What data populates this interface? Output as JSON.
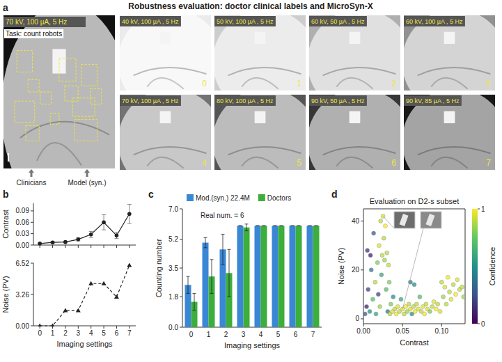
{
  "title": "Robustness evaluation: doctor clinical labels and MicroSyn-X",
  "panel_letters": [
    "a",
    "b",
    "c",
    "d"
  ],
  "panel_a": {
    "task": "Task: count robots",
    "main_setting": "70 kV, 100 µA, 5 Hz",
    "arrows": [
      "Clinicians",
      "Model (syn.)"
    ],
    "images": [
      {
        "setting": "40 kV, 100 µA , 5 Hz",
        "index": "0"
      },
      {
        "setting": "50 kV, 100 µA , 5 Hz",
        "index": "1"
      },
      {
        "setting": "60 kV, 50 µA , 5 Hz",
        "index": "2"
      },
      {
        "setting": "60 kV, 100 µA , 5 Hz",
        "index": "3"
      },
      {
        "setting": "70 kV, 100 µA , 5 Hz",
        "index": "4"
      },
      {
        "setting": "80 kV, 100 µA , 5 Hz",
        "index": "5"
      },
      {
        "setting": "90 kV, 50 µA , 5 Hz",
        "index": "6"
      },
      {
        "setting": "90 kV, 85 µA , 5 Hz",
        "index": "7"
      }
    ]
  },
  "chart_data": [
    {
      "type": "line",
      "ylabel": "Contrast",
      "x": [
        0,
        1,
        2,
        3,
        4,
        5,
        6,
        7
      ],
      "xlim": [
        -0.5,
        7.5
      ],
      "xticks": [
        0,
        1,
        2,
        3,
        4,
        5,
        6,
        7
      ],
      "ylim": [
        0,
        0.11
      ],
      "yticks": [
        {
          "value": 0,
          "label": "0.00"
        },
        0.03,
        0.06,
        0.09
      ],
      "tick_labels": "y",
      "grid": false,
      "series": [
        {
          "color": "#222222",
          "marker": "circle",
          "line_style": "solid",
          "values": [
            0.004,
            0.007,
            0.008,
            0.015,
            0.028,
            0.06,
            0.025,
            0.082
          ],
          "errors": [
            0.001,
            0.002,
            0.002,
            0.004,
            0.008,
            0.02,
            0.008,
            0.025
          ]
        }
      ]
    },
    {
      "type": "line",
      "ylabel": "Noise (PV)",
      "xlabel": "Imaging settings",
      "x": [
        0,
        1,
        2,
        3,
        4,
        5,
        6,
        7
      ],
      "xlim": [
        -0.5,
        7.5
      ],
      "xticks": [
        0,
        1,
        2,
        3,
        4,
        5,
        6,
        7
      ],
      "ylim": [
        0,
        6.52
      ],
      "yticks": [
        {
          "value": 0,
          "label": "0.00"
        },
        3.26,
        6.52
      ],
      "grid": false,
      "series": [
        {
          "color": "#222222",
          "marker": "triangle",
          "line_style": "dashed",
          "values": [
            0,
            0,
            1.6,
            1.6,
            4.4,
            4.4,
            3.0,
            6.3
          ]
        }
      ]
    },
    {
      "type": "bar",
      "ylabel": "Counting number",
      "xlabel": "Imaging settings",
      "categories": [
        "0",
        "1",
        "2",
        "3",
        "4",
        "5",
        "6",
        "7"
      ],
      "ylim": [
        0,
        7
      ],
      "yticks": [
        {
          "value": 0,
          "label": "0.0"
        },
        1.8,
        3.5,
        5.2,
        {
          "value": 7,
          "label": "7.0"
        }
      ],
      "annotations": [
        "Real num. = 6"
      ],
      "legend": "top",
      "grid": false,
      "series": [
        {
          "name": "Mod.(syn.) 22.4M",
          "color": "#3a87d6",
          "values": [
            2.5,
            5.0,
            4.6,
            6,
            6,
            6,
            6,
            6
          ],
          "errors": [
            0.5,
            0.3,
            0.9,
            0,
            0,
            0,
            0,
            0
          ]
        },
        {
          "name": "Doctors",
          "color": "#3cae3c",
          "values": [
            1.5,
            3.0,
            3.2,
            5.9,
            6,
            6,
            6,
            6
          ],
          "errors": [
            0.5,
            1.0,
            1.4,
            0.2,
            0,
            0,
            0,
            0
          ]
        }
      ]
    },
    {
      "type": "scatter",
      "title": "Evaluation on D2-s subset",
      "xlabel": "Contrast",
      "ylabel": "Noise (PV)",
      "xlim": [
        0,
        0.13
      ],
      "xticks": [
        {
          "value": 0,
          "label": "0.00"
        },
        {
          "value": 0.05,
          "label": "0.05"
        },
        {
          "value": 0.1,
          "label": "0.10"
        }
      ],
      "ylim": [
        -2,
        45
      ],
      "yticks": [
        0,
        20,
        40
      ],
      "grid": false,
      "marker": "circle",
      "colorbar": {
        "label": "Confidence",
        "range": [
          0,
          1
        ],
        "ticks": [
          0,
          1
        ]
      },
      "x": [
        0.002,
        0.004,
        0.005,
        0.006,
        0.008,
        0.009,
        0.01,
        0.012,
        0.013,
        0.015,
        0.016,
        0.018,
        0.019,
        0.02,
        0.021,
        0.022,
        0.023,
        0.024,
        0.025,
        0.026,
        0.027,
        0.028,
        0.029,
        0.03,
        0.031,
        0.032,
        0.033,
        0.034,
        0.035,
        0.037,
        0.038,
        0.04,
        0.042,
        0.044,
        0.046,
        0.048,
        0.05,
        0.052,
        0.054,
        0.056,
        0.058,
        0.06,
        0.06,
        0.062,
        0.064,
        0.065,
        0.066,
        0.068,
        0.07,
        0.072,
        0.074,
        0.076,
        0.078,
        0.08,
        0.082,
        0.085,
        0.088,
        0.09,
        0.093,
        0.095,
        0.098,
        0.1,
        0.102,
        0.104,
        0.106,
        0.108,
        0.11,
        0.112,
        0.115,
        0.118,
        0.12,
        0.123,
        0.126,
        0.128
      ],
      "series": [
        {
          "values": [
            2,
            5,
            28,
            12,
            3,
            26,
            20,
            8,
            35,
            15,
            2,
            23,
            10,
            30,
            5,
            40,
            18,
            26,
            42,
            33,
            24,
            38,
            12,
            27,
            3,
            22,
            15,
            2,
            6,
            3,
            9,
            4,
            2,
            5,
            3,
            8,
            4,
            2,
            5,
            3,
            6,
            4,
            15,
            2,
            5,
            14,
            3,
            6,
            4,
            9,
            3,
            5,
            2,
            6,
            4,
            3,
            5,
            7,
            4,
            6,
            3,
            15,
            9,
            13,
            6,
            17,
            11,
            8,
            14,
            10,
            16,
            12,
            13,
            9
          ],
          "confidence": [
            0.3,
            0.1,
            0.15,
            0.2,
            0.5,
            0.1,
            0.4,
            0.7,
            0.3,
            0.9,
            0.6,
            0.8,
            0.2,
            0.95,
            0.85,
            0.9,
            0.6,
            0.9,
            0.95,
            0.9,
            0.85,
            1.0,
            0.7,
            0.9,
            0.4,
            0.9,
            0.8,
            0.9,
            0.8,
            0.95,
            0.5,
            0.9,
            1.0,
            0.95,
            0.9,
            0.6,
            0.95,
            0.9,
            1.0,
            0.85,
            0.9,
            0.95,
            0.4,
            0.5,
            0.9,
            0.5,
            1.0,
            0.9,
            0.95,
            0.7,
            0.9,
            0.95,
            1.0,
            0.9,
            0.95,
            0.8,
            0.9,
            0.95,
            1.0,
            0.9,
            0.95,
            0.9,
            0.85,
            0.95,
            0.9,
            1.0,
            0.9,
            0.95,
            0.9,
            1.0,
            0.95,
            0.9,
            0.9,
            0.85
          ]
        }
      ]
    }
  ]
}
